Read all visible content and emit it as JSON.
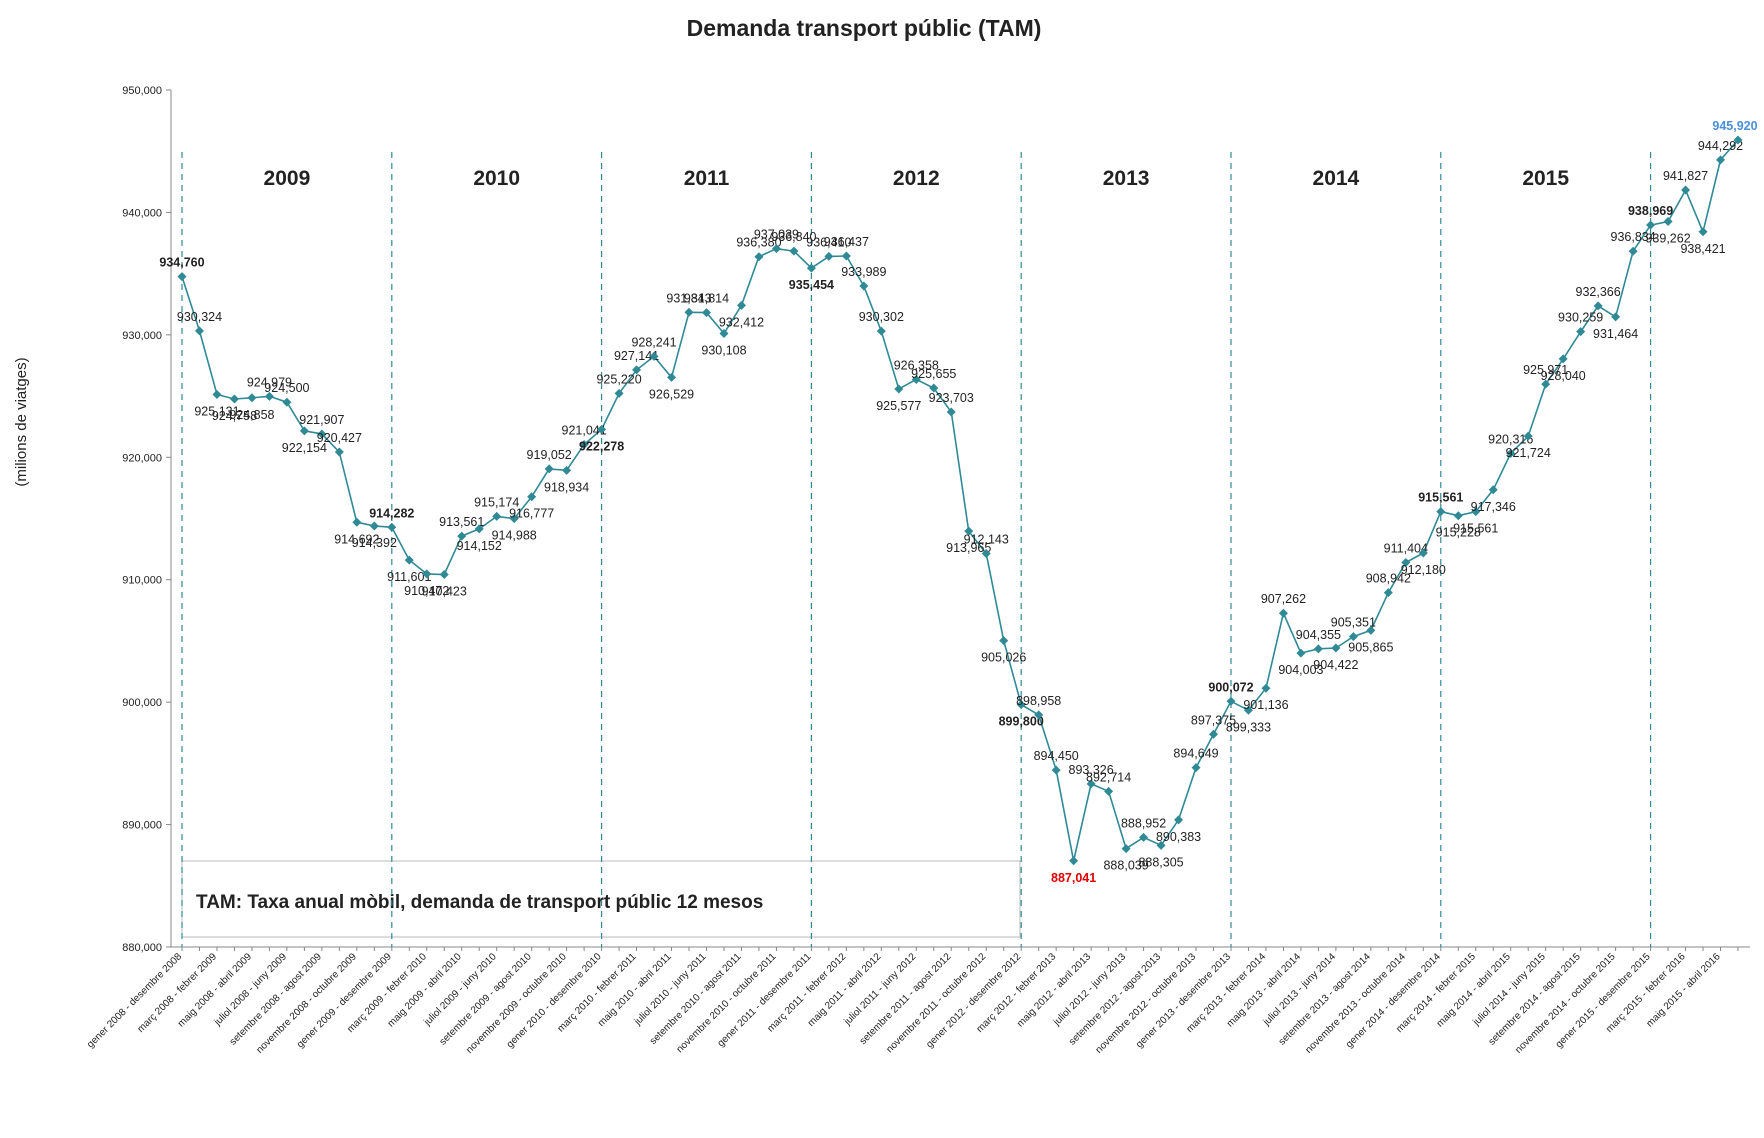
{
  "chart_data": {
    "type": "line",
    "title": "Demanda transport públic (TAM)",
    "y_label": "(milions de viatges)",
    "annotation": "TAM: Taxa anual mòbil, demanda de transport públic 12 mesos",
    "periods": [
      "2009",
      "2010",
      "2011",
      "2012",
      "2013",
      "2014",
      "2015"
    ],
    "color": "#2f8a96",
    "min_label_color": "#e00000",
    "last_label_color": "#4a90d9",
    "ylim": [
      880000,
      950000
    ],
    "yticks": [
      {
        "value": 880000,
        "label": "880,000"
      },
      {
        "value": 890000,
        "label": "890,000"
      },
      {
        "value": 900000,
        "label": "900,000"
      },
      {
        "value": 910000,
        "label": "910,000"
      },
      {
        "value": 920000,
        "label": "920,000"
      },
      {
        "value": 930000,
        "label": "930,000"
      },
      {
        "value": 940000,
        "label": "940,000"
      },
      {
        "value": 950000,
        "label": "950,000"
      }
    ],
    "categories": [
      "gener 2008 - desembre 2008",
      null,
      "març 2008 - febrer 2009",
      null,
      "maig 2008 - abril 2009",
      null,
      "juliol 2008 - juny 2009",
      null,
      "setembre 2008 - agost 2009",
      null,
      "novembre 2008 - octubre 2009",
      null,
      "gener 2009 - desembre 2009",
      null,
      "març 2009 - febrer 2010",
      null,
      "maig 2009 - abril 2010",
      null,
      "juliol 2009 - juny 2010",
      null,
      "setembre 2009 - agost 2010",
      null,
      "novembre 2009 - octubre 2010",
      null,
      "gener 2010 - desembre 2010",
      null,
      "març 2010 - febrer 2011",
      null,
      "maig 2010 - abril 2011",
      null,
      "juliol 2010 - juny 2011",
      null,
      "setembre 2010 - agost 2011",
      null,
      "novembre 2010 - octubre 2011",
      null,
      "gener 2011 - desembre 2011",
      null,
      "març 2011 - febrer 2012",
      null,
      "maig 2011 - abril 2012",
      null,
      "juliol 2011 - juny 2012",
      null,
      "setembre 2011 - agost 2012",
      null,
      "novembre 2011 - octubre 2012",
      null,
      "gener 2012 - desembre 2012",
      null,
      "març 2012 - febrer 2013",
      null,
      "maig 2012 - abril 2013",
      null,
      "juliol 2012 - juny 2013",
      null,
      "setembre 2012 - agost 2013",
      null,
      "novembre 2012 - octubre 2013",
      null,
      "gener 2013 - desembre 2013",
      null,
      "març 2013 - febrer 2014",
      null,
      "maig 2013 - abril 2014",
      null,
      "juliol 2013 - juny 2014",
      null,
      "setembre 2013 - agost 2014",
      null,
      "novembre 2013 - octubre 2014",
      null,
      "gener 2014 - desembre 2014",
      null,
      "març 2014 - febrer 2015",
      null,
      "maig 2014 - abril 2015",
      null,
      "juliol 2014 - juny 2015",
      null,
      "setembre 2014 - agost 2015",
      null,
      "novembre 2014 - octubre 2015",
      null,
      "gener 2015 - desembre 2015",
      null,
      "març 2015 - febrer 2016",
      null,
      "maig 2015 - abril 2016",
      null
    ],
    "values": [
      934760,
      930324,
      925131,
      924758,
      924858,
      924979,
      924500,
      922154,
      921907,
      920427,
      914692,
      914392,
      914282,
      911601,
      910472,
      910423,
      913561,
      914152,
      915174,
      914988,
      916777,
      919052,
      918934,
      921041,
      922278,
      925220,
      927141,
      928241,
      926529,
      931843,
      931814,
      930108,
      932412,
      936380,
      937039,
      936840,
      935454,
      936410,
      936437,
      933989,
      930302,
      925577,
      926358,
      925655,
      923703,
      913965,
      912143,
      905026,
      899800,
      898958,
      894450,
      887041,
      893326,
      892714,
      888039,
      888952,
      888305,
      890383,
      894649,
      897375,
      900072,
      899333,
      901136,
      907262,
      904003,
      904355,
      904422,
      905351,
      905865,
      908942,
      911404,
      912180,
      915561,
      915228,
      915561,
      917346,
      920316,
      921724,
      925971,
      928040,
      930259,
      932366,
      931464,
      936834,
      938969,
      939262,
      941827,
      938421,
      944292,
      945920
    ],
    "value_labels": [
      "934,760",
      "930,324",
      "925,131",
      "924,758",
      "924,858",
      "924,979",
      "924,500",
      "922,154",
      "921,907",
      "920,427",
      "914,692",
      "914,392",
      "914,282",
      "911,601",
      "910,472",
      "910,423",
      "913,561",
      "914,152",
      "915,174",
      "914,988",
      "916,777",
      "919,052",
      "918,934",
      "921,041",
      "922,278",
      "925,220",
      "927,141",
      "928,241",
      "926,529",
      "931,843",
      "931,814",
      "930,108",
      "932,412",
      "936,380",
      "937,039",
      "936,840",
      "935,454",
      "936,410",
      "936,437",
      "933,989",
      "930,302",
      "925,577",
      "926,358",
      "925,655",
      "923,703",
      "913,965",
      "912,143",
      "905,026",
      "899,800",
      "898,958",
      "894,450",
      "887,041",
      "893,326",
      "892,714",
      "888,039",
      "888,952",
      "888,305",
      "890,383",
      "894,649",
      "897,375",
      "900,072",
      "899,333",
      "901,136",
      "907,262",
      "904,003",
      "904,355",
      "904,422",
      "905,351",
      "905,865",
      "908,942",
      "911,404",
      "912,180",
      "915,561",
      "915,228",
      "915,561",
      "917,346",
      "920,316",
      "921,724",
      "925,971",
      "928,040",
      "930,259",
      "932,366",
      "931,464",
      "936,834",
      "938,969",
      "939,262",
      "941,827",
      "938,421",
      "944,292",
      "945,920"
    ]
  }
}
